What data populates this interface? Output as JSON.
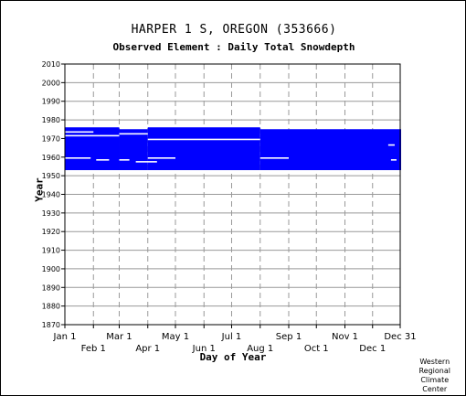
{
  "chart_data": {
    "type": "heatmap",
    "title": "HARPER 1 S, OREGON   (353666)",
    "subtitle": "Observed Element : Daily Total Snowdepth",
    "xlabel": "Day of Year",
    "ylabel": "Year",
    "xlim": [
      1,
      365
    ],
    "ylim": [
      1870,
      2010
    ],
    "y_ticks": [
      2010,
      2000,
      1990,
      1980,
      1970,
      1960,
      1950,
      1940,
      1930,
      1920,
      1910,
      1900,
      1890,
      1880,
      1870
    ],
    "x_ticks_top_row": [
      {
        "label": "Jan 1",
        "day": 1
      },
      {
        "label": "Mar 1",
        "day": 60
      },
      {
        "label": "May 1",
        "day": 121
      },
      {
        "label": "Jul 1",
        "day": 182
      },
      {
        "label": "Sep 1",
        "day": 244
      },
      {
        "label": "Nov 1",
        "day": 305
      },
      {
        "label": "Dec 31",
        "day": 365
      }
    ],
    "x_ticks_bottom_row": [
      {
        "label": "Feb 1",
        "day": 32
      },
      {
        "label": "Apr 1",
        "day": 91
      },
      {
        "label": "Jun 1",
        "day": 152
      },
      {
        "label": "Aug 1",
        "day": 213
      },
      {
        "label": "Oct 1",
        "day": 274
      },
      {
        "label": "Dec 1",
        "day": 335
      }
    ],
    "grid": true,
    "data_color": "#0000ff",
    "coverage_blocks": [
      {
        "day_start": 1,
        "day_end": 59,
        "year_start": 1953,
        "year_end": 1975
      },
      {
        "day_start": 60,
        "day_end": 90,
        "year_start": 1953,
        "year_end": 1974
      },
      {
        "day_start": 91,
        "day_end": 212,
        "year_start": 1953,
        "year_end": 1975
      },
      {
        "day_start": 213,
        "day_end": 365,
        "year_start": 1953,
        "year_end": 1974
      }
    ],
    "missing_segments": [
      {
        "day_start": 1,
        "day_end": 31,
        "year": 1973
      },
      {
        "day_start": 1,
        "day_end": 59,
        "year": 1971
      },
      {
        "day_start": 60,
        "day_end": 90,
        "year": 1972
      },
      {
        "day_start": 91,
        "day_end": 212,
        "year": 1969
      },
      {
        "day_start": 1,
        "day_end": 28,
        "year": 1959
      },
      {
        "day_start": 35,
        "day_end": 48,
        "year": 1958
      },
      {
        "day_start": 60,
        "day_end": 70,
        "year": 1958
      },
      {
        "day_start": 91,
        "day_end": 120,
        "year": 1959
      },
      {
        "day_start": 78,
        "day_end": 100,
        "year": 1957
      },
      {
        "day_start": 213,
        "day_end": 243,
        "year": 1959
      },
      {
        "day_start": 352,
        "day_end": 358,
        "year": 1966
      },
      {
        "day_start": 355,
        "day_end": 360,
        "year": 1958
      }
    ]
  },
  "credit": {
    "line1": "Western",
    "line2": "Regional",
    "line3": "Climate",
    "line4": "Center"
  }
}
